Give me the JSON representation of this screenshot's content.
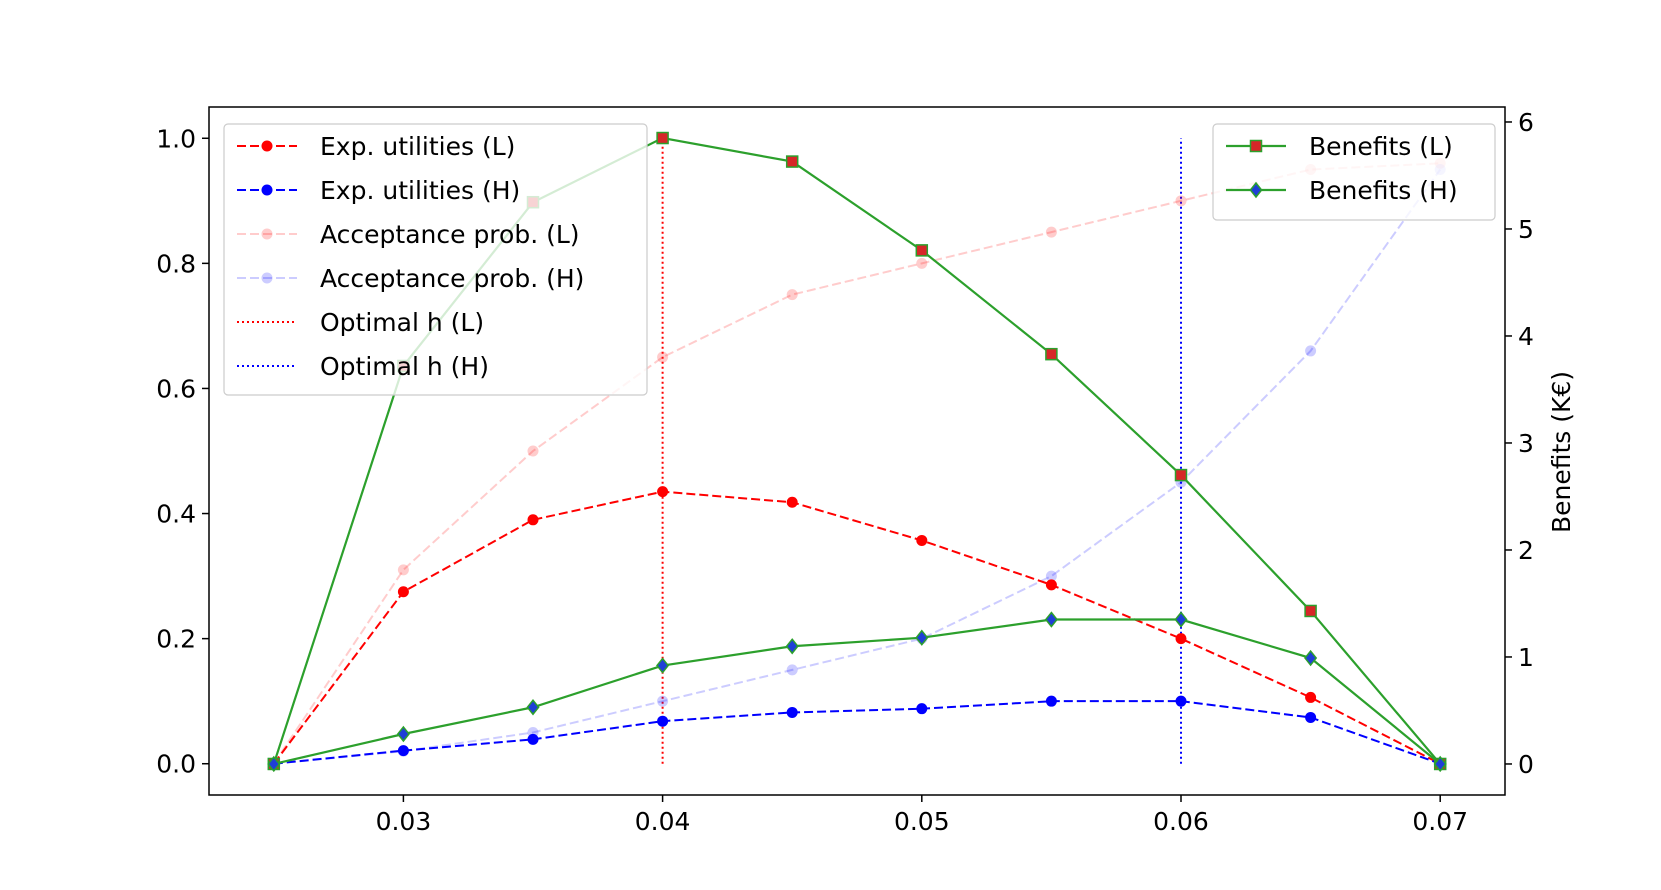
{
  "chart_data": {
    "type": "line",
    "title": "",
    "xlabel": "",
    "ylabel_left": "",
    "ylabel_right": "Benefits (K€)",
    "x": [
      0.025,
      0.03,
      0.035,
      0.04,
      0.045,
      0.05,
      0.055,
      0.06,
      0.065,
      0.07
    ],
    "xlim": [
      0.0225,
      0.0725
    ],
    "xticks": [
      0.03,
      0.04,
      0.05,
      0.06,
      0.07
    ],
    "xtick_labels": [
      "0.03",
      "0.04",
      "0.05",
      "0.06",
      "0.07"
    ],
    "ylim_left": [
      -0.05,
      1.05
    ],
    "yticks_left": [
      0.0,
      0.2,
      0.4,
      0.6,
      0.8,
      1.0
    ],
    "ytick_labels_left": [
      "0.0",
      "0.2",
      "0.4",
      "0.6",
      "0.8",
      "1.0"
    ],
    "ylim_right": [
      -0.29,
      6.14
    ],
    "yticks_right": [
      0,
      1,
      2,
      3,
      4,
      5,
      6
    ],
    "ytick_labels_right": [
      "0",
      "1",
      "2",
      "3",
      "4",
      "5",
      "6"
    ],
    "grid": false,
    "left_series": [
      {
        "name": "Exp. utilities (L)",
        "color": "#ff0000",
        "dash": "dashed",
        "marker": "circle",
        "alpha": 1.0,
        "values": [
          0.0,
          0.275,
          0.39,
          0.435,
          0.418,
          0.357,
          0.286,
          0.2,
          0.106,
          0.0
        ]
      },
      {
        "name": "Exp. utilities (H)",
        "color": "#0000ff",
        "dash": "dashed",
        "marker": "circle",
        "alpha": 1.0,
        "values": [
          0.0,
          0.021,
          0.039,
          0.068,
          0.082,
          0.088,
          0.1,
          0.1,
          0.074,
          0.0
        ]
      },
      {
        "name": "Acceptance prob. (L)",
        "color": "#ff0000",
        "dash": "dashed",
        "marker": "circle",
        "alpha": 0.2,
        "values": [
          0.0,
          0.31,
          0.5,
          0.65,
          0.75,
          0.8,
          0.85,
          0.9,
          0.95,
          0.96
        ]
      },
      {
        "name": "Acceptance prob. (H)",
        "color": "#0000ff",
        "dash": "dashed",
        "marker": "circle",
        "alpha": 0.2,
        "values": [
          0.0,
          0.02,
          0.05,
          0.1,
          0.15,
          0.2,
          0.3,
          0.45,
          0.66,
          0.95
        ]
      }
    ],
    "vertical_lines": [
      {
        "name": "Optimal h (L)",
        "color": "#ff0000",
        "x": 0.04,
        "y_from": 0.0,
        "y_to": 1.0
      },
      {
        "name": "Optimal h (H)",
        "color": "#0000ff",
        "x": 0.06,
        "y_from": 0.0,
        "y_to": 1.0
      }
    ],
    "right_series": [
      {
        "name": "Benefits (L)",
        "color": "#2ca02c",
        "marker_face": "#d62728",
        "marker": "square",
        "values": [
          0.0,
          3.72,
          5.25,
          5.85,
          5.63,
          4.8,
          3.83,
          2.7,
          1.43,
          0.0
        ]
      },
      {
        "name": "Benefits (H)",
        "color": "#2ca02c",
        "marker_face": "#1f3fd6",
        "marker": "diamond",
        "values": [
          0.0,
          0.28,
          0.53,
          0.92,
          1.1,
          1.18,
          1.35,
          1.35,
          0.99,
          0.0
        ]
      }
    ],
    "legend_left_placement": "upper-left",
    "legend_right_placement": "upper-right"
  }
}
